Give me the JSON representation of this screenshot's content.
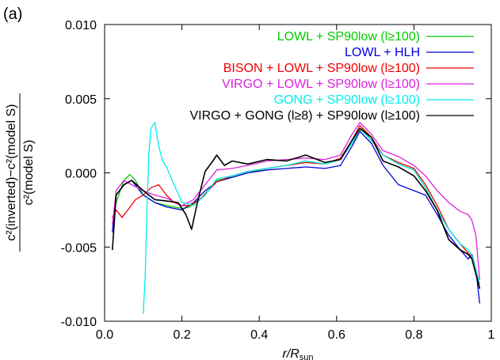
{
  "chart_data": {
    "type": "line",
    "panel_label": "(a)",
    "xlabel": "r/Rₛᵤₙ",
    "xlabel_main": "r/R",
    "xlabel_sub": "sun",
    "ylabel_numerator": "c²(inverted)−c²(model S)",
    "ylabel_denominator": "c²(model S)",
    "xlim": [
      0.0,
      1.0
    ],
    "ylim": [
      -0.01,
      0.01
    ],
    "x_ticks": [
      0.0,
      0.2,
      0.4,
      0.6,
      0.8,
      1.0
    ],
    "x_tick_labels": [
      "0.0",
      "0.2",
      "0.4",
      "0.6",
      "0.8",
      "1"
    ],
    "y_ticks": [
      -0.01,
      -0.005,
      0.0,
      0.005,
      0.01
    ],
    "y_tick_labels": [
      "-0.010",
      "-0.005",
      "0.000",
      "0.005",
      "0.010"
    ],
    "legend_position": "top-right",
    "series": [
      {
        "name": "LOWL + SP90low (l≥100)",
        "color": "#00cc00",
        "x": [
          0.02,
          0.03,
          0.05,
          0.065,
          0.08,
          0.1,
          0.13,
          0.16,
          0.18,
          0.2,
          0.22,
          0.25,
          0.29,
          0.33,
          0.37,
          0.42,
          0.47,
          0.52,
          0.57,
          0.61,
          0.64,
          0.665,
          0.69,
          0.72,
          0.76,
          0.8,
          0.83,
          0.86,
          0.89,
          0.92,
          0.94,
          0.95,
          0.96,
          0.97
        ],
        "values": [
          -0.0035,
          -0.002,
          -0.0005,
          -0.0001,
          -0.0005,
          -0.0015,
          -0.002,
          -0.0022,
          -0.0023,
          -0.0024,
          -0.0023,
          -0.0017,
          -0.0005,
          -0.0003,
          0.0,
          0.0003,
          0.0005,
          0.0008,
          0.0006,
          0.0009,
          0.002,
          0.003,
          0.0022,
          0.0012,
          0.0006,
          0.0002,
          -0.001,
          -0.0025,
          -0.0038,
          -0.0048,
          -0.0052,
          -0.0056,
          -0.0065,
          -0.0075
        ]
      },
      {
        "name": "LOWL + HLH",
        "color": "#0000dd",
        "x": [
          0.02,
          0.03,
          0.05,
          0.07,
          0.1,
          0.13,
          0.16,
          0.2,
          0.23,
          0.26,
          0.29,
          0.33,
          0.37,
          0.42,
          0.47,
          0.52,
          0.57,
          0.61,
          0.64,
          0.66,
          0.69,
          0.72,
          0.76,
          0.8,
          0.83,
          0.86,
          0.89,
          0.92,
          0.94,
          0.95,
          0.96,
          0.97
        ],
        "values": [
          -0.004,
          -0.0015,
          -0.0008,
          -0.0005,
          -0.0015,
          -0.002,
          -0.0023,
          -0.0025,
          -0.002,
          -0.0012,
          -0.0006,
          -0.0003,
          0.0,
          0.0002,
          0.0003,
          0.0004,
          0.0003,
          0.0005,
          0.0018,
          0.0028,
          0.002,
          0.0005,
          -0.0008,
          -0.0012,
          -0.0015,
          -0.0028,
          -0.0042,
          -0.0052,
          -0.0058,
          -0.0055,
          -0.0065,
          -0.0088
        ]
      },
      {
        "name": "BISON + LOWL + SP90low (l≥100)",
        "color": "#ee0000",
        "x": [
          0.02,
          0.03,
          0.045,
          0.06,
          0.08,
          0.1,
          0.12,
          0.14,
          0.16,
          0.18,
          0.2,
          0.22,
          0.25,
          0.29,
          0.33,
          0.37,
          0.42,
          0.47,
          0.52,
          0.57,
          0.61,
          0.64,
          0.66,
          0.69,
          0.72,
          0.76,
          0.8,
          0.83,
          0.86,
          0.89,
          0.92,
          0.94,
          0.95,
          0.96,
          0.97
        ],
        "values": [
          -0.003,
          -0.0025,
          -0.003,
          -0.0025,
          -0.0018,
          -0.0015,
          -0.001,
          -0.0008,
          -0.0015,
          -0.002,
          -0.0022,
          -0.0022,
          -0.0017,
          -0.0006,
          -0.0002,
          0.0001,
          0.0003,
          0.0005,
          0.0007,
          0.0006,
          0.001,
          0.0022,
          0.0032,
          0.0024,
          0.0012,
          0.0007,
          0.0003,
          -0.0008,
          -0.0022,
          -0.0038,
          -0.0048,
          -0.0054,
          -0.0057,
          -0.0066,
          -0.0078
        ]
      },
      {
        "name": "VIRGO + LOWL + SP90low (l≥100)",
        "color": "#dd22dd",
        "x": [
          0.02,
          0.03,
          0.05,
          0.07,
          0.1,
          0.13,
          0.16,
          0.2,
          0.23,
          0.26,
          0.29,
          0.33,
          0.37,
          0.42,
          0.47,
          0.52,
          0.57,
          0.61,
          0.64,
          0.66,
          0.69,
          0.72,
          0.76,
          0.8,
          0.83,
          0.86,
          0.89,
          0.92,
          0.94,
          0.95,
          0.96,
          0.97
        ],
        "values": [
          -0.0035,
          -0.0012,
          -0.0005,
          -0.0008,
          -0.0012,
          -0.0015,
          -0.0017,
          -0.0022,
          -0.0018,
          -0.0008,
          0.0002,
          0.0003,
          0.0005,
          0.0008,
          0.0009,
          0.001,
          0.0009,
          0.0012,
          0.0026,
          0.0034,
          0.0026,
          0.0015,
          0.0011,
          0.0005,
          -0.0002,
          -0.0012,
          -0.002,
          -0.0026,
          -0.0028,
          -0.0032,
          -0.0042,
          -0.0072
        ]
      },
      {
        "name": "GONG + SP90low (l≥100)",
        "color": "#00eeee",
        "x": [
          0.1,
          0.105,
          0.11,
          0.115,
          0.12,
          0.13,
          0.14,
          0.15,
          0.16,
          0.18,
          0.2,
          0.23,
          0.26,
          0.29,
          0.33,
          0.37,
          0.42,
          0.47,
          0.52,
          0.57,
          0.61,
          0.64,
          0.66,
          0.69,
          0.72,
          0.76,
          0.8,
          0.83,
          0.86,
          0.89,
          0.92,
          0.94,
          0.95,
          0.96,
          0.97
        ],
        "values": [
          -0.0095,
          -0.007,
          -0.002,
          0.0015,
          0.003,
          0.0034,
          0.0018,
          0.0008,
          0.0004,
          -0.0008,
          -0.002,
          -0.0022,
          -0.0015,
          -0.0004,
          -0.0002,
          0.0001,
          0.0003,
          0.0005,
          0.0008,
          0.0006,
          0.0009,
          0.002,
          0.003,
          0.0022,
          0.0012,
          0.0006,
          0.0002,
          -0.001,
          -0.0025,
          -0.0038,
          -0.0048,
          -0.0052,
          -0.0056,
          -0.0065,
          -0.0075
        ]
      },
      {
        "name": "VIRGO + GONG (l≥8) + SP90low (l≥100)",
        "color": "#000000",
        "x": [
          0.02,
          0.03,
          0.05,
          0.07,
          0.1,
          0.13,
          0.16,
          0.19,
          0.21,
          0.225,
          0.24,
          0.26,
          0.28,
          0.29,
          0.31,
          0.33,
          0.37,
          0.42,
          0.47,
          0.52,
          0.57,
          0.61,
          0.64,
          0.66,
          0.69,
          0.72,
          0.76,
          0.8,
          0.83,
          0.86,
          0.89,
          0.92,
          0.94,
          0.95,
          0.96,
          0.97
        ],
        "values": [
          -0.0052,
          -0.0015,
          -0.0008,
          -0.0005,
          -0.0012,
          -0.0018,
          -0.0019,
          -0.002,
          -0.0028,
          -0.0038,
          -0.002,
          0.0001,
          0.0008,
          0.0012,
          0.0005,
          0.0008,
          0.0006,
          0.0009,
          0.0008,
          0.0012,
          0.0007,
          0.0009,
          0.0022,
          0.003,
          0.0024,
          0.0008,
          0.0004,
          -0.0002,
          -0.0012,
          -0.0025,
          -0.0045,
          -0.0052,
          -0.0055,
          -0.0058,
          -0.0068,
          -0.0078
        ]
      }
    ]
  }
}
